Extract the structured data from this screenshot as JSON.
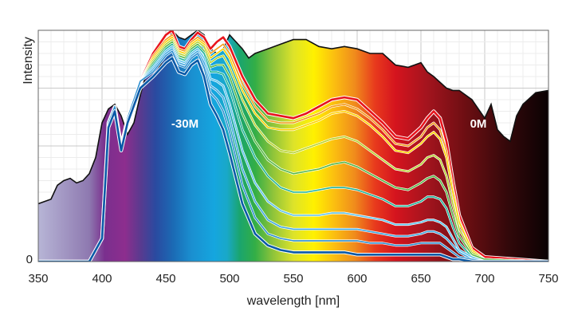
{
  "chart_data": {
    "type": "line",
    "xlabel": "wavelength [nm]",
    "ylabel": "Intensity",
    "xlim": [
      350,
      750
    ],
    "ylim": [
      0,
      100
    ],
    "x_ticks": [
      350,
      400,
      450,
      500,
      550,
      600,
      650,
      700,
      750
    ],
    "y_tick_labels": [
      {
        "value": 0,
        "label": "0"
      }
    ],
    "grid": true,
    "legend": "none",
    "annotations": [
      {
        "text": "-30M",
        "x": 465,
        "y": 58
      },
      {
        "text": "0M",
        "x": 695,
        "y": 58
      }
    ],
    "spectrum_background": {
      "description": "filled outline of the light-source spectrum, colored by wavelength",
      "x": [
        350,
        360,
        365,
        370,
        375,
        380,
        385,
        390,
        395,
        400,
        405,
        410,
        415,
        420,
        425,
        430,
        435,
        440,
        445,
        450,
        455,
        460,
        465,
        470,
        475,
        480,
        485,
        490,
        495,
        500,
        505,
        510,
        515,
        520,
        530,
        540,
        550,
        560,
        570,
        580,
        590,
        600,
        610,
        620,
        630,
        640,
        650,
        655,
        660,
        670,
        675,
        680,
        690,
        700,
        705,
        710,
        715,
        720,
        725,
        730,
        740,
        750
      ],
      "y": [
        25,
        27,
        33,
        35,
        36,
        34,
        35,
        38,
        45,
        60,
        66,
        68,
        63,
        55,
        60,
        72,
        82,
        86,
        84,
        90,
        100,
        97,
        96,
        98,
        100,
        98,
        92,
        90,
        92,
        98,
        95,
        92,
        88,
        90,
        92,
        94,
        96,
        96,
        93,
        92,
        93,
        92,
        90,
        90,
        85,
        84,
        86,
        82,
        80,
        75,
        74,
        74,
        70,
        62,
        68,
        57,
        54,
        52,
        63,
        68,
        73,
        74
      ]
    },
    "curve_sample_x": [
      350,
      390,
      400,
      405,
      410,
      415,
      420,
      430,
      440,
      450,
      455,
      460,
      465,
      470,
      475,
      480,
      485,
      490,
      495,
      500,
      510,
      520,
      530,
      540,
      550,
      560,
      570,
      580,
      590,
      600,
      610,
      620,
      630,
      640,
      650,
      655,
      660,
      665,
      670,
      675,
      680,
      690,
      700,
      750
    ],
    "series": [
      {
        "color": "#e8141c",
        "emphasis": "outer",
        "values": [
          0,
          0,
          10,
          60,
          67,
          50,
          62,
          78,
          90,
          98,
          100,
          93,
          92,
          96,
          99,
          97,
          92,
          95,
          97,
          93,
          80,
          70,
          64,
          63,
          62,
          64,
          67,
          70,
          71,
          70,
          65,
          60,
          54,
          53,
          58,
          62,
          65,
          62,
          52,
          35,
          20,
          6,
          2,
          0
        ]
      },
      {
        "color": "#f39a1b",
        "values": [
          0,
          0,
          10,
          60,
          67,
          50,
          62,
          78,
          89,
          96,
          98,
          92,
          91,
          95,
          97,
          95,
          90,
          92,
          94,
          90,
          77,
          67,
          61,
          60,
          60,
          62,
          64,
          67,
          68,
          66,
          62,
          57,
          51,
          50,
          54,
          58,
          60,
          57,
          48,
          32,
          18,
          5,
          1,
          0
        ]
      },
      {
        "color": "#ffd200",
        "values": [
          0,
          0,
          10,
          60,
          67,
          50,
          62,
          78,
          88,
          95,
          97,
          91,
          90,
          94,
          96,
          94,
          88,
          90,
          92,
          88,
          74,
          64,
          58,
          57,
          57,
          59,
          61,
          64,
          65,
          63,
          59,
          54,
          48,
          47,
          51,
          54,
          56,
          53,
          45,
          30,
          17,
          5,
          1,
          0
        ]
      },
      {
        "color": "#b9d432",
        "values": [
          0,
          0,
          10,
          60,
          67,
          50,
          62,
          78,
          87,
          94,
          96,
          90,
          89,
          93,
          95,
          93,
          86,
          88,
          89,
          84,
          70,
          59,
          52,
          48,
          47,
          49,
          51,
          53,
          54,
          52,
          48,
          44,
          40,
          39,
          42,
          45,
          46,
          44,
          37,
          25,
          14,
          4,
          1,
          0
        ]
      },
      {
        "color": "#57b947",
        "values": [
          0,
          0,
          10,
          60,
          67,
          50,
          62,
          78,
          86,
          93,
          95,
          89,
          88,
          92,
          94,
          91,
          84,
          85,
          85,
          80,
          64,
          52,
          44,
          40,
          38,
          39,
          40,
          42,
          43,
          41,
          38,
          35,
          32,
          31,
          34,
          36,
          37,
          35,
          30,
          20,
          11,
          3,
          1,
          0
        ]
      },
      {
        "color": "#22b59a",
        "values": [
          0,
          0,
          10,
          60,
          67,
          50,
          62,
          78,
          85,
          92,
          94,
          88,
          87,
          91,
          93,
          90,
          82,
          82,
          81,
          75,
          57,
          45,
          37,
          32,
          30,
          30,
          31,
          32,
          32,
          31,
          29,
          27,
          24,
          24,
          26,
          28,
          28,
          27,
          23,
          15,
          8,
          2,
          0,
          0
        ]
      },
      {
        "color": "#5fc4ec",
        "values": [
          0,
          0,
          10,
          60,
          67,
          50,
          62,
          78,
          84,
          91,
          93,
          87,
          86,
          90,
          92,
          88,
          79,
          78,
          76,
          68,
          48,
          34,
          26,
          22,
          20,
          20,
          20,
          21,
          21,
          20,
          19,
          18,
          16,
          16,
          17,
          18,
          18,
          17,
          15,
          10,
          5,
          2,
          0,
          0
        ]
      },
      {
        "color": "#40a8e0",
        "values": [
          0,
          0,
          10,
          60,
          67,
          50,
          62,
          78,
          83,
          90,
          92,
          86,
          85,
          89,
          91,
          86,
          76,
          74,
          71,
          62,
          40,
          26,
          18,
          15,
          14,
          14,
          14,
          14,
          14,
          14,
          13,
          12,
          11,
          11,
          12,
          13,
          13,
          12,
          10,
          7,
          4,
          1,
          0,
          0
        ]
      },
      {
        "color": "#2f90d0",
        "values": [
          0,
          0,
          10,
          60,
          67,
          50,
          62,
          78,
          82,
          89,
          91,
          85,
          84,
          88,
          90,
          84,
          73,
          70,
          65,
          56,
          33,
          19,
          12,
          10,
          9,
          9,
          9,
          9,
          9,
          9,
          8,
          8,
          7,
          7,
          8,
          8,
          8,
          8,
          6,
          4,
          2,
          1,
          0,
          0
        ]
      },
      {
        "color": "#0a5aa8",
        "emphasis": "outer",
        "values": [
          0,
          0,
          10,
          58,
          65,
          48,
          60,
          75,
          80,
          86,
          88,
          82,
          81,
          85,
          87,
          80,
          68,
          63,
          57,
          47,
          25,
          12,
          7,
          5,
          4,
          4,
          4,
          4,
          4,
          3,
          3,
          3,
          3,
          3,
          3,
          3,
          3,
          3,
          2,
          1,
          1,
          0,
          0,
          0
        ]
      }
    ]
  }
}
